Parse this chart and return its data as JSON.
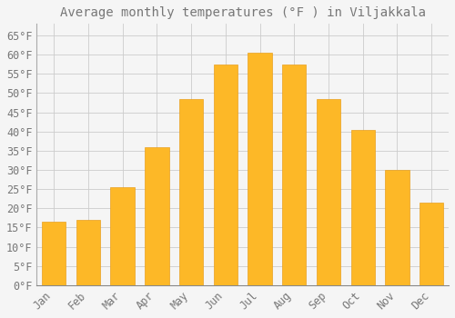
{
  "title": "Average monthly temperatures (°F ) in Viljakkala",
  "months": [
    "Jan",
    "Feb",
    "Mar",
    "Apr",
    "May",
    "Jun",
    "Jul",
    "Aug",
    "Sep",
    "Oct",
    "Nov",
    "Dec"
  ],
  "values": [
    16.5,
    17.0,
    25.5,
    36.0,
    48.5,
    57.5,
    60.5,
    57.5,
    48.5,
    40.5,
    30.0,
    21.5
  ],
  "bar_color": "#FDB827",
  "bar_edge_color": "#E8A020",
  "background_color": "#F5F5F5",
  "grid_color": "#CCCCCC",
  "text_color": "#777777",
  "ylim": [
    0,
    68
  ],
  "yticks": [
    0,
    5,
    10,
    15,
    20,
    25,
    30,
    35,
    40,
    45,
    50,
    55,
    60,
    65
  ],
  "title_fontsize": 10,
  "tick_fontsize": 8.5
}
